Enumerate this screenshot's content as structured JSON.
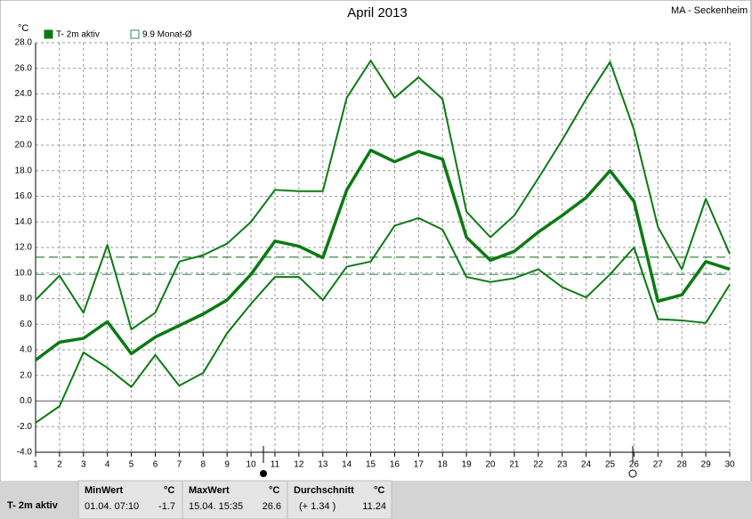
{
  "chart_data": {
    "type": "line",
    "title": "April 2013",
    "station": "MA - Seckenheim",
    "y_unit": "°C",
    "x": [
      1,
      2,
      3,
      4,
      5,
      6,
      7,
      8,
      9,
      10,
      11,
      12,
      13,
      14,
      15,
      16,
      17,
      18,
      19,
      20,
      21,
      22,
      23,
      24,
      25,
      26,
      27,
      28,
      29,
      30
    ],
    "xlim": [
      1,
      30
    ],
    "xticks": [
      1,
      2,
      3,
      4,
      5,
      6,
      7,
      8,
      9,
      10,
      11,
      12,
      13,
      14,
      15,
      16,
      17,
      18,
      19,
      20,
      21,
      22,
      23,
      24,
      25,
      26,
      27,
      28,
      29,
      30
    ],
    "ylim": [
      -4,
      28
    ],
    "yticks": [
      {
        "value": -4,
        "label": "-4.0"
      },
      {
        "value": -2,
        "label": "-2.0"
      },
      {
        "value": 0,
        "label": "0.0"
      },
      {
        "value": 2,
        "label": "2.0"
      },
      {
        "value": 4,
        "label": "4.0"
      },
      {
        "value": 6,
        "label": "6.0"
      },
      {
        "value": 8,
        "label": "8.0"
      },
      {
        "value": 10,
        "label": "10.0"
      },
      {
        "value": 12,
        "label": "12.0"
      },
      {
        "value": 14,
        "label": "14.0"
      },
      {
        "value": 16,
        "label": "16.0"
      },
      {
        "value": 18,
        "label": "18.0"
      },
      {
        "value": 20,
        "label": "20.0"
      },
      {
        "value": 22,
        "label": "22.0"
      },
      {
        "value": 24,
        "label": "24.0"
      },
      {
        "value": 26,
        "label": "26.0"
      },
      {
        "value": 28,
        "label": "28.0"
      }
    ],
    "grid": true,
    "series": [
      {
        "name": "T- 2m aktiv",
        "color": "#0b7a14",
        "values": [
          3.2,
          4.6,
          4.9,
          6.2,
          3.7,
          5.0,
          5.9,
          6.8,
          7.9,
          9.9,
          12.5,
          12.1,
          11.2,
          16.5,
          19.6,
          18.7,
          19.5,
          18.9,
          12.8,
          11.0,
          11.7,
          13.2,
          14.5,
          15.9,
          18.0,
          15.6,
          7.8,
          8.3,
          10.9,
          10.3
        ]
      },
      {
        "color": "#0b7a14",
        "values": [
          7.9,
          9.8,
          6.9,
          12.2,
          5.6,
          6.9,
          10.9,
          11.4,
          12.3,
          14.0,
          16.5,
          16.4,
          16.4,
          23.7,
          26.6,
          23.7,
          25.3,
          23.6,
          14.8,
          12.8,
          14.5,
          17.4,
          20.4,
          23.6,
          26.5,
          21.2,
          13.6,
          10.3,
          15.8,
          11.5
        ]
      },
      {
        "color": "#0b7a14",
        "values": [
          -1.7,
          -0.4,
          3.8,
          2.6,
          1.1,
          3.6,
          1.2,
          2.2,
          5.3,
          7.6,
          9.7,
          9.7,
          7.9,
          10.5,
          10.9,
          13.7,
          14.3,
          13.4,
          9.7,
          9.3,
          9.6,
          10.3,
          8.9,
          8.1,
          9.9,
          12.0,
          6.4,
          6.3,
          6.1,
          9.1
        ]
      }
    ],
    "normal_legend": "9.9 Monat-Ø",
    "normal": 9.9,
    "normal_color": "#2e8b57",
    "stats": {
      "min": {
        "header": "MinWert",
        "unit": "°C",
        "time": "01.04.  07:10",
        "value": -1.7
      },
      "max": {
        "header": "MaxWert",
        "unit": "°C",
        "time": "15.04.  15:35",
        "value": 26.6
      },
      "avg": {
        "header": "Durchschnitt",
        "unit": "°C",
        "diff": "(+ 1.34 )",
        "value": 11.24
      }
    }
  }
}
